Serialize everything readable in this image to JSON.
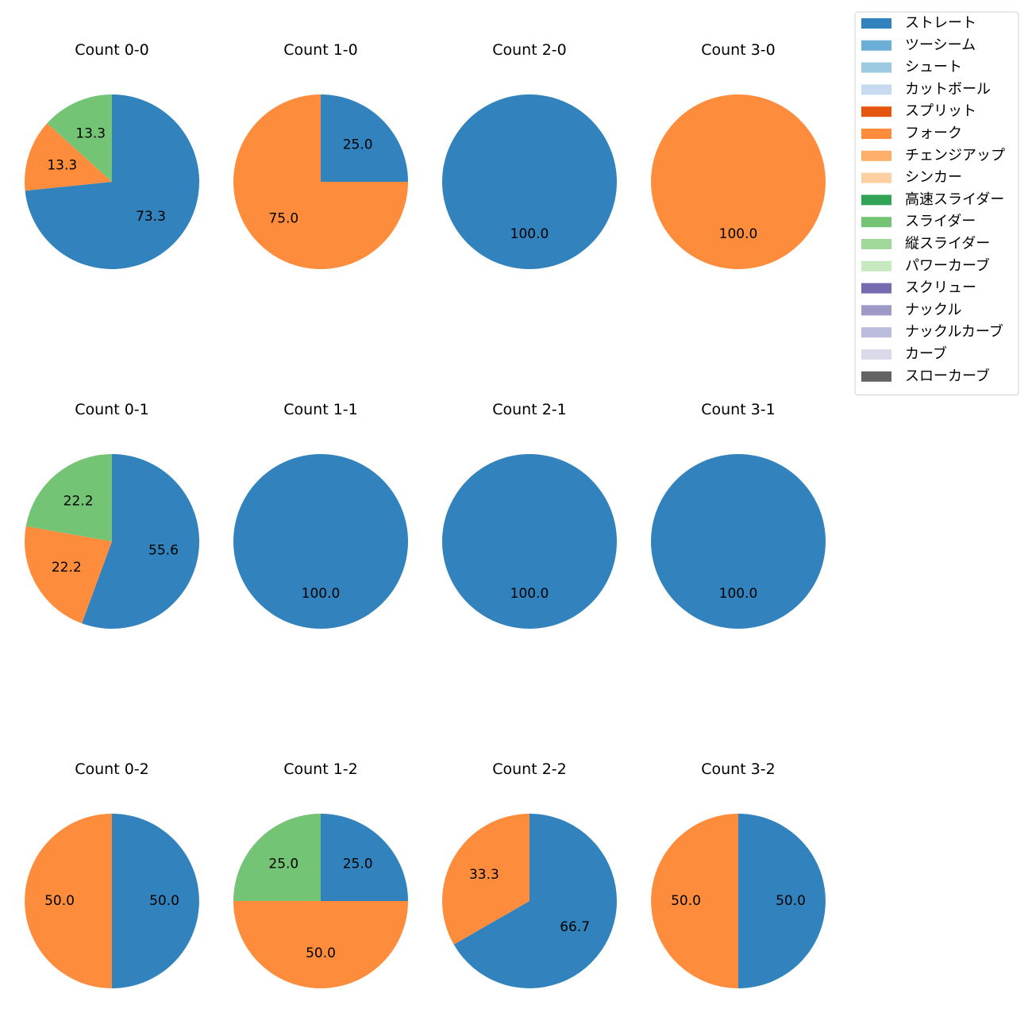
{
  "chart_data": {
    "type": "pie",
    "legend": {
      "placement": "top-right",
      "entries": [
        {
          "name": "ストレート",
          "color": "#3182bd"
        },
        {
          "name": "ツーシーム",
          "color": "#6baed6"
        },
        {
          "name": "シュート",
          "color": "#9ecae1"
        },
        {
          "name": "カットボール",
          "color": "#c6dbef"
        },
        {
          "name": "スプリット",
          "color": "#e6550d"
        },
        {
          "name": "フォーク",
          "color": "#fd8d3c"
        },
        {
          "name": "チェンジアップ",
          "color": "#fdae6b"
        },
        {
          "name": "シンカー",
          "color": "#fdd0a2"
        },
        {
          "name": "高速スライダー",
          "color": "#31a354"
        },
        {
          "name": "スライダー",
          "color": "#74c476"
        },
        {
          "name": "縦スライダー",
          "color": "#a1d99b"
        },
        {
          "name": "パワーカーブ",
          "color": "#c7e9c0"
        },
        {
          "name": "スクリュー",
          "color": "#756bb1"
        },
        {
          "name": "ナックル",
          "color": "#9e9ac8"
        },
        {
          "name": "ナックルカーブ",
          "color": "#bcbddc"
        },
        {
          "name": "カーブ",
          "color": "#dadaeb"
        },
        {
          "name": "スローカーブ",
          "color": "#636363"
        }
      ]
    },
    "charts": [
      {
        "title": "Count 0-0",
        "slices": [
          {
            "category": "ストレート",
            "value": 73.3,
            "label": "73.3"
          },
          {
            "category": "フォーク",
            "value": 13.3,
            "label": "13.3"
          },
          {
            "category": "スライダー",
            "value": 13.3,
            "label": "13.3"
          }
        ]
      },
      {
        "title": "Count 1-0",
        "slices": [
          {
            "category": "ストレート",
            "value": 25.0,
            "label": "25.0"
          },
          {
            "category": "フォーク",
            "value": 75.0,
            "label": "75.0"
          }
        ]
      },
      {
        "title": "Count 2-0",
        "slices": [
          {
            "category": "ストレート",
            "value": 100.0,
            "label": "100.0"
          }
        ]
      },
      {
        "title": "Count 3-0",
        "slices": [
          {
            "category": "フォーク",
            "value": 100.0,
            "label": "100.0"
          }
        ]
      },
      {
        "title": "Count 0-1",
        "slices": [
          {
            "category": "ストレート",
            "value": 55.6,
            "label": "55.6"
          },
          {
            "category": "フォーク",
            "value": 22.2,
            "label": "22.2"
          },
          {
            "category": "スライダー",
            "value": 22.2,
            "label": "22.2"
          }
        ]
      },
      {
        "title": "Count 1-1",
        "slices": [
          {
            "category": "ストレート",
            "value": 100.0,
            "label": "100.0"
          }
        ]
      },
      {
        "title": "Count 2-1",
        "slices": [
          {
            "category": "ストレート",
            "value": 100.0,
            "label": "100.0"
          }
        ]
      },
      {
        "title": "Count 3-1",
        "slices": [
          {
            "category": "ストレート",
            "value": 100.0,
            "label": "100.0"
          }
        ]
      },
      {
        "title": "Count 0-2",
        "slices": [
          {
            "category": "ストレート",
            "value": 50.0,
            "label": "50.0"
          },
          {
            "category": "フォーク",
            "value": 50.0,
            "label": "50.0"
          }
        ]
      },
      {
        "title": "Count 1-2",
        "slices": [
          {
            "category": "ストレート",
            "value": 25.0,
            "label": "25.0"
          },
          {
            "category": "フォーク",
            "value": 50.0,
            "label": "50.0"
          },
          {
            "category": "スライダー",
            "value": 25.0,
            "label": "25.0"
          }
        ]
      },
      {
        "title": "Count 2-2",
        "slices": [
          {
            "category": "ストレート",
            "value": 66.7,
            "label": "66.7"
          },
          {
            "category": "フォーク",
            "value": 33.3,
            "label": "33.3"
          }
        ]
      },
      {
        "title": "Count 3-2",
        "slices": [
          {
            "category": "ストレート",
            "value": 50.0,
            "label": "50.0"
          },
          {
            "category": "フォーク",
            "value": 50.0,
            "label": "50.0"
          }
        ]
      }
    ]
  }
}
